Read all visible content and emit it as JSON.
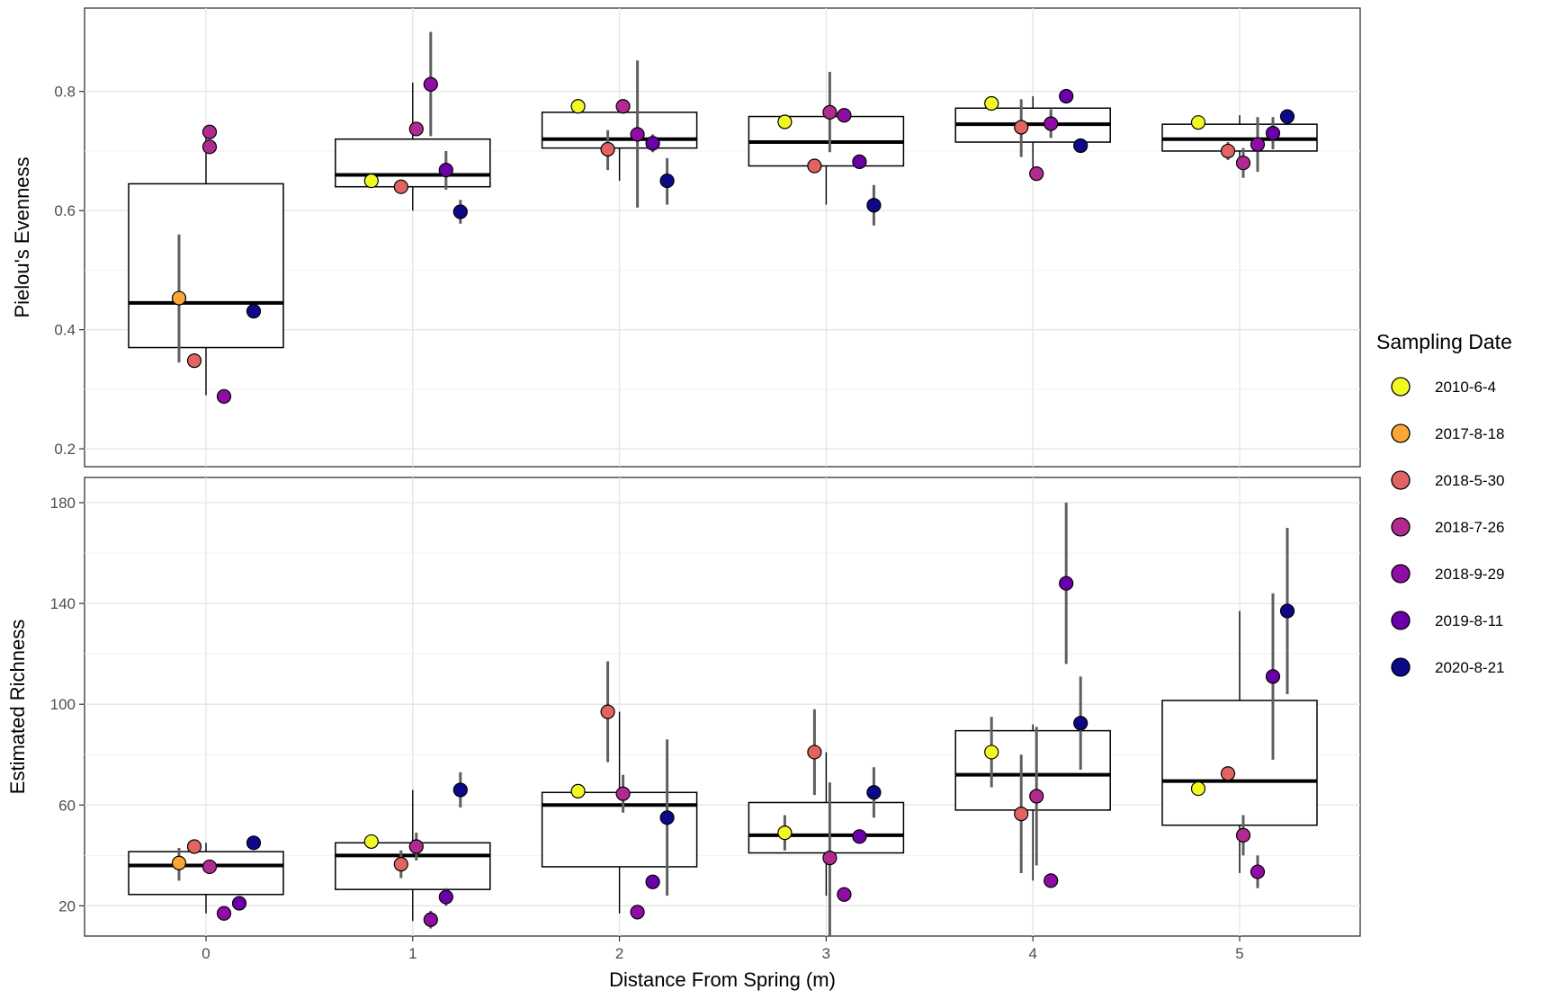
{
  "chart_data": {
    "type": "box+scatter",
    "xlabel": "Distance From Spring (m)",
    "x_ticks": [
      "0",
      "1",
      "2",
      "3",
      "4",
      "5"
    ],
    "legend": {
      "title": "Sampling Date",
      "position": "right",
      "entries": [
        {
          "label": "2010-6-4",
          "color": "#f0f921"
        },
        {
          "label": "2017-8-18",
          "color": "#fca636"
        },
        {
          "label": "2018-5-30",
          "color": "#e16462"
        },
        {
          "label": "2018-7-26",
          "color": "#b12a90"
        },
        {
          "label": "2018-9-29",
          "color": "#8f0da4"
        },
        {
          "label": "2019-8-11",
          "color": "#6a00a8"
        },
        {
          "label": "2020-8-21",
          "color": "#0d0887"
        }
      ]
    },
    "panels": [
      {
        "id": "evenness",
        "ylabel": "Pielou's Evenness",
        "ylim": [
          0.17,
          0.94
        ],
        "y_ticks": [
          0.2,
          0.4,
          0.6,
          0.8
        ],
        "y_tick_labels": [
          "0.2",
          "0.4",
          "0.6",
          "0.8"
        ],
        "boxes": [
          {
            "x": 0,
            "q1": 0.37,
            "median": 0.445,
            "q3": 0.645,
            "whisker_low": 0.29,
            "whisker_high": 0.735
          },
          {
            "x": 1,
            "q1": 0.64,
            "median": 0.66,
            "q3": 0.72,
            "whisker_low": 0.6,
            "whisker_high": 0.815
          },
          {
            "x": 2,
            "q1": 0.705,
            "median": 0.72,
            "q3": 0.765,
            "whisker_low": 0.65,
            "whisker_high": 0.778
          },
          {
            "x": 3,
            "q1": 0.675,
            "median": 0.715,
            "q3": 0.758,
            "whisker_low": 0.61,
            "whisker_high": 0.765
          },
          {
            "x": 4,
            "q1": 0.715,
            "median": 0.745,
            "q3": 0.772,
            "whisker_low": 0.665,
            "whisker_high": 0.792
          },
          {
            "x": 5,
            "q1": 0.7,
            "median": 0.72,
            "q3": 0.745,
            "whisker_low": 0.68,
            "whisker_high": 0.76
          }
        ],
        "points": [
          {
            "series": 1,
            "x": 0,
            "y": 0.453,
            "lo": 0.345,
            "hi": 0.56
          },
          {
            "series": 2,
            "x": 0,
            "y": 0.348,
            "lo": null,
            "hi": null
          },
          {
            "series": 3,
            "x": 0,
            "y": 0.707,
            "lo": null,
            "hi": null
          },
          {
            "series": 3,
            "x": 0,
            "y": 0.732,
            "lo": null,
            "hi": null
          },
          {
            "series": 4,
            "x": 0,
            "y": 0.288,
            "lo": null,
            "hi": null
          },
          {
            "series": 6,
            "x": 0,
            "y": 0.431,
            "lo": null,
            "hi": null
          },
          {
            "series": 0,
            "x": 1,
            "y": 0.65,
            "lo": null,
            "hi": null
          },
          {
            "series": 2,
            "x": 1,
            "y": 0.64,
            "lo": null,
            "hi": null
          },
          {
            "series": 3,
            "x": 1,
            "y": 0.737,
            "lo": null,
            "hi": null
          },
          {
            "series": 4,
            "x": 1,
            "y": 0.812,
            "lo": 0.725,
            "hi": 0.9
          },
          {
            "series": 5,
            "x": 1,
            "y": 0.668,
            "lo": 0.635,
            "hi": 0.7
          },
          {
            "series": 6,
            "x": 1,
            "y": 0.598,
            "lo": 0.578,
            "hi": 0.618
          },
          {
            "series": 0,
            "x": 2,
            "y": 0.775,
            "lo": null,
            "hi": null
          },
          {
            "series": 2,
            "x": 2,
            "y": 0.703,
            "lo": 0.668,
            "hi": 0.735
          },
          {
            "series": 3,
            "x": 2,
            "y": 0.775,
            "lo": null,
            "hi": null
          },
          {
            "series": 4,
            "x": 2,
            "y": 0.728,
            "lo": 0.605,
            "hi": 0.852
          },
          {
            "series": 5,
            "x": 2,
            "y": 0.713,
            "lo": 0.698,
            "hi": 0.728
          },
          {
            "series": 6,
            "x": 2,
            "y": 0.65,
            "lo": 0.61,
            "hi": 0.688
          },
          {
            "series": 0,
            "x": 3,
            "y": 0.749,
            "lo": 0.74,
            "hi": 0.758
          },
          {
            "series": 2,
            "x": 3,
            "y": 0.675,
            "lo": 0.665,
            "hi": 0.685
          },
          {
            "series": 3,
            "x": 3,
            "y": 0.765,
            "lo": 0.698,
            "hi": 0.833
          },
          {
            "series": 4,
            "x": 3,
            "y": 0.76,
            "lo": 0.75,
            "hi": 0.77
          },
          {
            "series": 5,
            "x": 3,
            "y": 0.682,
            "lo": null,
            "hi": null
          },
          {
            "series": 6,
            "x": 3,
            "y": 0.609,
            "lo": 0.575,
            "hi": 0.643
          },
          {
            "series": 0,
            "x": 4,
            "y": 0.78,
            "lo": null,
            "hi": null
          },
          {
            "series": 2,
            "x": 4,
            "y": 0.74,
            "lo": 0.69,
            "hi": 0.787
          },
          {
            "series": 3,
            "x": 4,
            "y": 0.662,
            "lo": 0.652,
            "hi": 0.672
          },
          {
            "series": 4,
            "x": 4,
            "y": 0.746,
            "lo": 0.722,
            "hi": 0.77
          },
          {
            "series": 5,
            "x": 4,
            "y": 0.792,
            "lo": null,
            "hi": null
          },
          {
            "series": 6,
            "x": 4,
            "y": 0.709,
            "lo": null,
            "hi": null
          },
          {
            "series": 0,
            "x": 5,
            "y": 0.748,
            "lo": null,
            "hi": null
          },
          {
            "series": 2,
            "x": 5,
            "y": 0.7,
            "lo": 0.685,
            "hi": 0.715
          },
          {
            "series": 3,
            "x": 5,
            "y": 0.68,
            "lo": 0.655,
            "hi": 0.705
          },
          {
            "series": 4,
            "x": 5,
            "y": 0.711,
            "lo": 0.665,
            "hi": 0.757
          },
          {
            "series": 5,
            "x": 5,
            "y": 0.73,
            "lo": 0.703,
            "hi": 0.757
          },
          {
            "series": 6,
            "x": 5,
            "y": 0.758,
            "lo": 0.75,
            "hi": 0.766
          }
        ]
      },
      {
        "id": "richness",
        "ylabel": "Estimated Richness",
        "ylim": [
          8,
          190
        ],
        "y_ticks": [
          20,
          60,
          100,
          140,
          180
        ],
        "y_tick_labels": [
          "20",
          "60",
          "100",
          "140",
          "180"
        ],
        "boxes": [
          {
            "x": 0,
            "q1": 24.5,
            "median": 36,
            "q3": 41.5,
            "whisker_low": 17,
            "whisker_high": 45
          },
          {
            "x": 1,
            "q1": 26.5,
            "median": 40,
            "q3": 45,
            "whisker_low": 14,
            "whisker_high": 66
          },
          {
            "x": 2,
            "q1": 35.5,
            "median": 60,
            "q3": 65,
            "whisker_low": 17,
            "whisker_high": 97
          },
          {
            "x": 3,
            "q1": 41,
            "median": 48,
            "q3": 61,
            "whisker_low": 24,
            "whisker_high": 81
          },
          {
            "x": 4,
            "q1": 58,
            "median": 72,
            "q3": 89.5,
            "whisker_low": 30,
            "whisker_high": 92
          },
          {
            "x": 5,
            "q1": 52,
            "median": 69.5,
            "q3": 101.5,
            "whisker_low": 33,
            "whisker_high": 137
          }
        ],
        "points": [
          {
            "series": 1,
            "x": 0,
            "y": 37,
            "lo": 30,
            "hi": 43
          },
          {
            "series": 2,
            "x": 0,
            "y": 43.5,
            "lo": null,
            "hi": null
          },
          {
            "series": 3,
            "x": 0,
            "y": 35.5,
            "lo": null,
            "hi": null
          },
          {
            "series": 4,
            "x": 0,
            "y": 17,
            "lo": null,
            "hi": null
          },
          {
            "series": 5,
            "x": 0,
            "y": 21,
            "lo": null,
            "hi": null
          },
          {
            "series": 6,
            "x": 0,
            "y": 45,
            "lo": null,
            "hi": null
          },
          {
            "series": 0,
            "x": 1,
            "y": 45.5,
            "lo": null,
            "hi": null
          },
          {
            "series": 2,
            "x": 1,
            "y": 36.5,
            "lo": 31,
            "hi": 42
          },
          {
            "series": 3,
            "x": 1,
            "y": 43.5,
            "lo": 38,
            "hi": 49
          },
          {
            "series": 4,
            "x": 1,
            "y": 14.5,
            "lo": 11,
            "hi": 18
          },
          {
            "series": 5,
            "x": 1,
            "y": 23.5,
            "lo": 20,
            "hi": 27
          },
          {
            "series": 6,
            "x": 1,
            "y": 66,
            "lo": 59,
            "hi": 73
          },
          {
            "series": 0,
            "x": 2,
            "y": 65.5,
            "lo": null,
            "hi": null
          },
          {
            "series": 2,
            "x": 2,
            "y": 97,
            "lo": 77,
            "hi": 117
          },
          {
            "series": 3,
            "x": 2,
            "y": 64.5,
            "lo": 57,
            "hi": 72
          },
          {
            "series": 4,
            "x": 2,
            "y": 17.5,
            "lo": null,
            "hi": null
          },
          {
            "series": 5,
            "x": 2,
            "y": 29.5,
            "lo": null,
            "hi": null
          },
          {
            "series": 6,
            "x": 2,
            "y": 55,
            "lo": 24,
            "hi": 86
          },
          {
            "series": 0,
            "x": 3,
            "y": 49,
            "lo": 42,
            "hi": 56
          },
          {
            "series": 2,
            "x": 3,
            "y": 81,
            "lo": 64,
            "hi": 98
          },
          {
            "series": 3,
            "x": 3,
            "y": 39,
            "lo": 8,
            "hi": 69
          },
          {
            "series": 4,
            "x": 3,
            "y": 24.5,
            "lo": null,
            "hi": null
          },
          {
            "series": 5,
            "x": 3,
            "y": 47.5,
            "lo": null,
            "hi": null
          },
          {
            "series": 6,
            "x": 3,
            "y": 65,
            "lo": 55,
            "hi": 75
          },
          {
            "series": 0,
            "x": 4,
            "y": 81,
            "lo": 67,
            "hi": 95
          },
          {
            "series": 2,
            "x": 4,
            "y": 56.5,
            "lo": 33,
            "hi": 80
          },
          {
            "series": 3,
            "x": 4,
            "y": 63.5,
            "lo": 36,
            "hi": 91
          },
          {
            "series": 4,
            "x": 4,
            "y": 30,
            "lo": null,
            "hi": null
          },
          {
            "series": 5,
            "x": 4,
            "y": 148,
            "lo": 116,
            "hi": 180
          },
          {
            "series": 6,
            "x": 4,
            "y": 92.5,
            "lo": 74,
            "hi": 111
          },
          {
            "series": 0,
            "x": 5,
            "y": 66.5,
            "lo": null,
            "hi": null
          },
          {
            "series": 2,
            "x": 5,
            "y": 72.5,
            "lo": null,
            "hi": null
          },
          {
            "series": 3,
            "x": 5,
            "y": 48,
            "lo": 40,
            "hi": 56
          },
          {
            "series": 4,
            "x": 5,
            "y": 33.5,
            "lo": 27,
            "hi": 40
          },
          {
            "series": 5,
            "x": 5,
            "y": 111,
            "lo": 78,
            "hi": 144
          },
          {
            "series": 6,
            "x": 5,
            "y": 137,
            "lo": 104,
            "hi": 170
          }
        ]
      }
    ]
  }
}
